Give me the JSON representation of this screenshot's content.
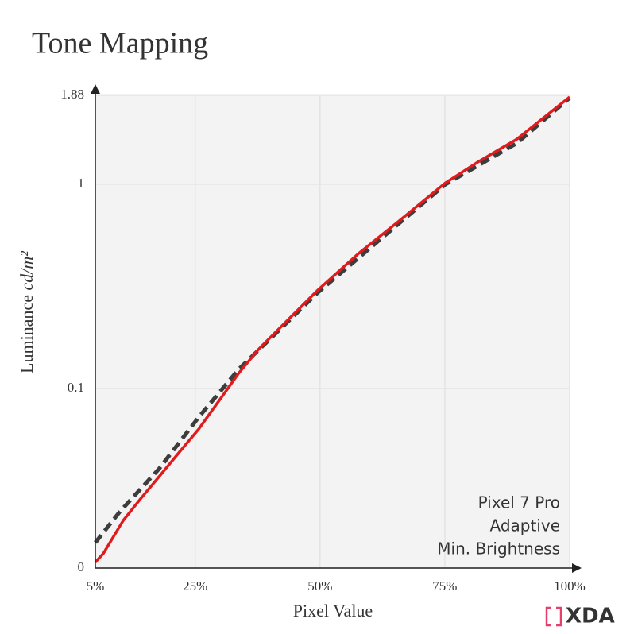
{
  "chart_data": {
    "type": "line",
    "title": "Tone Mapping",
    "x_label": "Pixel Value",
    "y_label": "Luminance",
    "y_unit": "cd/m²",
    "xlim": [
      5,
      100
    ],
    "xticks": [
      {
        "value": 5,
        "label": "5%"
      },
      {
        "value": 25,
        "label": "25%"
      },
      {
        "value": 50,
        "label": "50%"
      },
      {
        "value": 75,
        "label": "75%"
      },
      {
        "value": 100,
        "label": "100%"
      }
    ],
    "ylim": [
      0,
      1.88
    ],
    "yticks": [
      0,
      0.1,
      1,
      1.88
    ],
    "yscale": "power",
    "yexponent": 0.33,
    "grid": true,
    "series": [
      {
        "color": "#e01b1e",
        "dash": false,
        "x": [
          5,
          6.6,
          8.2,
          10.6,
          13.8,
          17.8,
          21.7,
          25.7,
          29.7,
          33.7,
          37.6,
          41.6,
          49.6,
          57.6,
          65.5,
          75.1,
          81.4,
          89.4,
          100
        ],
        "values": [
          3e-06,
          5e-05,
          0.00035,
          0.0018,
          0.0052,
          0.013,
          0.026,
          0.046,
          0.08,
          0.128,
          0.181,
          0.236,
          0.377,
          0.544,
          0.728,
          1.01,
          1.18,
          1.4,
          1.86
        ]
      },
      {
        "color": "#3d3d3d",
        "dash": true,
        "x": [
          5,
          9.8,
          17.8,
          25.7,
          33.7,
          49.6,
          65.5,
          75.1,
          89.4,
          100
        ],
        "values": [
          0.00027,
          0.0029,
          0.0167,
          0.059,
          0.136,
          0.367,
          0.713,
          0.999,
          1.36,
          1.85
        ]
      }
    ],
    "annotations": [
      "Pixel 7 Pro",
      "Adaptive",
      "Min. Brightness"
    ],
    "watermark": "XDA"
  }
}
